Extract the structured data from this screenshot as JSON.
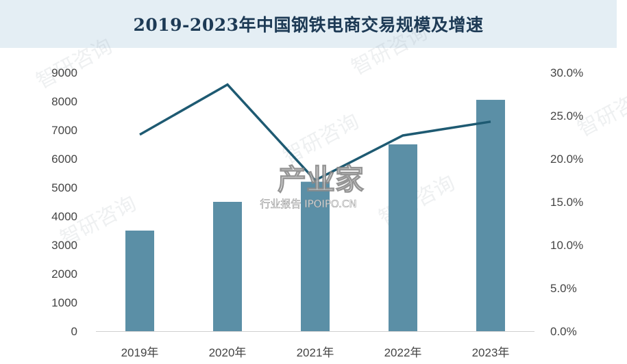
{
  "title": "2019-2023年中国钢铁电商交易规模及增速",
  "watermark": {
    "brand": "智研咨询",
    "overlay_main": "产业家",
    "overlay_sub": "行业报告 IPOIPO.CN"
  },
  "colors": {
    "bar": "#5b8fa6",
    "line": "#1e5a72",
    "title_bg": "#e4eef4",
    "title_text": "#1d3a55"
  },
  "chart_data": {
    "type": "bar",
    "categories": [
      "2019年",
      "2020年",
      "2021年",
      "2022年",
      "2023年"
    ],
    "series": [
      {
        "type": "bar",
        "axis": "left",
        "values": [
          3500,
          4500,
          5200,
          6500,
          8050
        ]
      },
      {
        "type": "line",
        "axis": "right",
        "values": [
          22.8,
          28.6,
          17.5,
          22.7,
          24.3
        ]
      }
    ],
    "y_left": {
      "min": 0,
      "max": 9000,
      "ticks": [
        "0",
        "1000",
        "2000",
        "3000",
        "4000",
        "5000",
        "6000",
        "7000",
        "8000",
        "9000"
      ]
    },
    "y_right": {
      "min": 0,
      "max": 30,
      "ticks": [
        "0.0%",
        "5.0%",
        "10.0%",
        "15.0%",
        "20.0%",
        "25.0%",
        "30.0%"
      ]
    },
    "grid": false,
    "legend": "none"
  }
}
